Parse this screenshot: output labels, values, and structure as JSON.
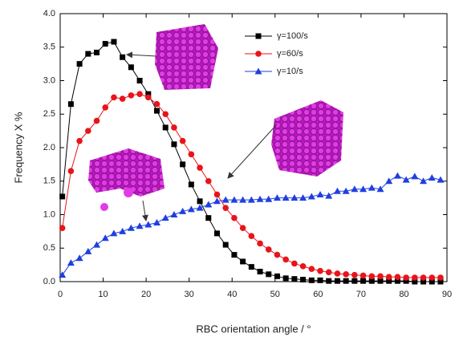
{
  "chart_data": {
    "type": "line",
    "xlabel": "RBC orientation angle / °",
    "ylabel": "Frequency X %",
    "x": [
      0.5,
      2.5,
      4.5,
      6.5,
      8.5,
      10.5,
      12.5,
      14.5,
      16.5,
      18.5,
      20.5,
      22.5,
      24.5,
      26.5,
      28.5,
      30.5,
      32.5,
      34.5,
      36.5,
      38.5,
      40.5,
      42.5,
      44.5,
      46.5,
      48.5,
      50.5,
      52.5,
      54.5,
      56.5,
      58.5,
      60.5,
      62.5,
      64.5,
      66.5,
      68.5,
      70.5,
      72.5,
      74.5,
      76.5,
      78.5,
      80.5,
      82.5,
      84.5,
      86.5,
      88.5
    ],
    "series": [
      {
        "name": "γ=100/s",
        "color": "#000000",
        "marker": "square",
        "values": [
          1.27,
          2.65,
          3.25,
          3.4,
          3.42,
          3.55,
          3.58,
          3.35,
          3.2,
          3.0,
          2.8,
          2.55,
          2.3,
          2.05,
          1.75,
          1.45,
          1.2,
          0.95,
          0.72,
          0.55,
          0.4,
          0.3,
          0.22,
          0.15,
          0.11,
          0.08,
          0.05,
          0.04,
          0.03,
          0.02,
          0.02,
          0.01,
          0.01,
          0.01,
          0.01,
          0.01,
          0.01,
          0.01,
          0.01,
          0.01,
          0.01,
          0,
          0,
          0,
          0
        ]
      },
      {
        "name": "γ=60/s",
        "color": "#e8141a",
        "marker": "circle",
        "values": [
          0.8,
          1.65,
          2.1,
          2.25,
          2.4,
          2.6,
          2.75,
          2.73,
          2.78,
          2.8,
          2.75,
          2.65,
          2.5,
          2.3,
          2.1,
          1.9,
          1.7,
          1.5,
          1.3,
          1.1,
          0.95,
          0.8,
          0.68,
          0.57,
          0.48,
          0.4,
          0.33,
          0.27,
          0.23,
          0.19,
          0.16,
          0.14,
          0.12,
          0.11,
          0.1,
          0.09,
          0.08,
          0.08,
          0.07,
          0.07,
          0.06,
          0.06,
          0.06,
          0.06,
          0.06
        ]
      },
      {
        "name": "γ=10/s",
        "color": "#1f3fe0",
        "marker": "triangle",
        "values": [
          0.1,
          0.28,
          0.35,
          0.45,
          0.55,
          0.65,
          0.72,
          0.75,
          0.8,
          0.83,
          0.85,
          0.88,
          0.95,
          1.0,
          1.05,
          1.08,
          1.1,
          1.15,
          1.2,
          1.22,
          1.22,
          1.22,
          1.22,
          1.23,
          1.23,
          1.25,
          1.25,
          1.25,
          1.25,
          1.27,
          1.3,
          1.28,
          1.35,
          1.35,
          1.38,
          1.38,
          1.4,
          1.38,
          1.5,
          1.58,
          1.52,
          1.57,
          1.5,
          1.55,
          1.52
        ]
      }
    ],
    "xlim": [
      0,
      90
    ],
    "xticks": [
      0,
      10,
      20,
      30,
      40,
      50,
      60,
      70,
      80,
      90
    ],
    "ylim": [
      0,
      4
    ],
    "yticks": [
      {
        "value": 0,
        "label": "0.0"
      },
      0.5,
      {
        "value": 1,
        "label": "1.0"
      },
      1.5,
      {
        "value": 2,
        "label": "2.0"
      },
      2.5,
      {
        "value": 3,
        "label": "3.0"
      },
      3.5,
      {
        "value": 4,
        "label": "4.0"
      }
    ],
    "grid": false,
    "legend": "upper right"
  }
}
